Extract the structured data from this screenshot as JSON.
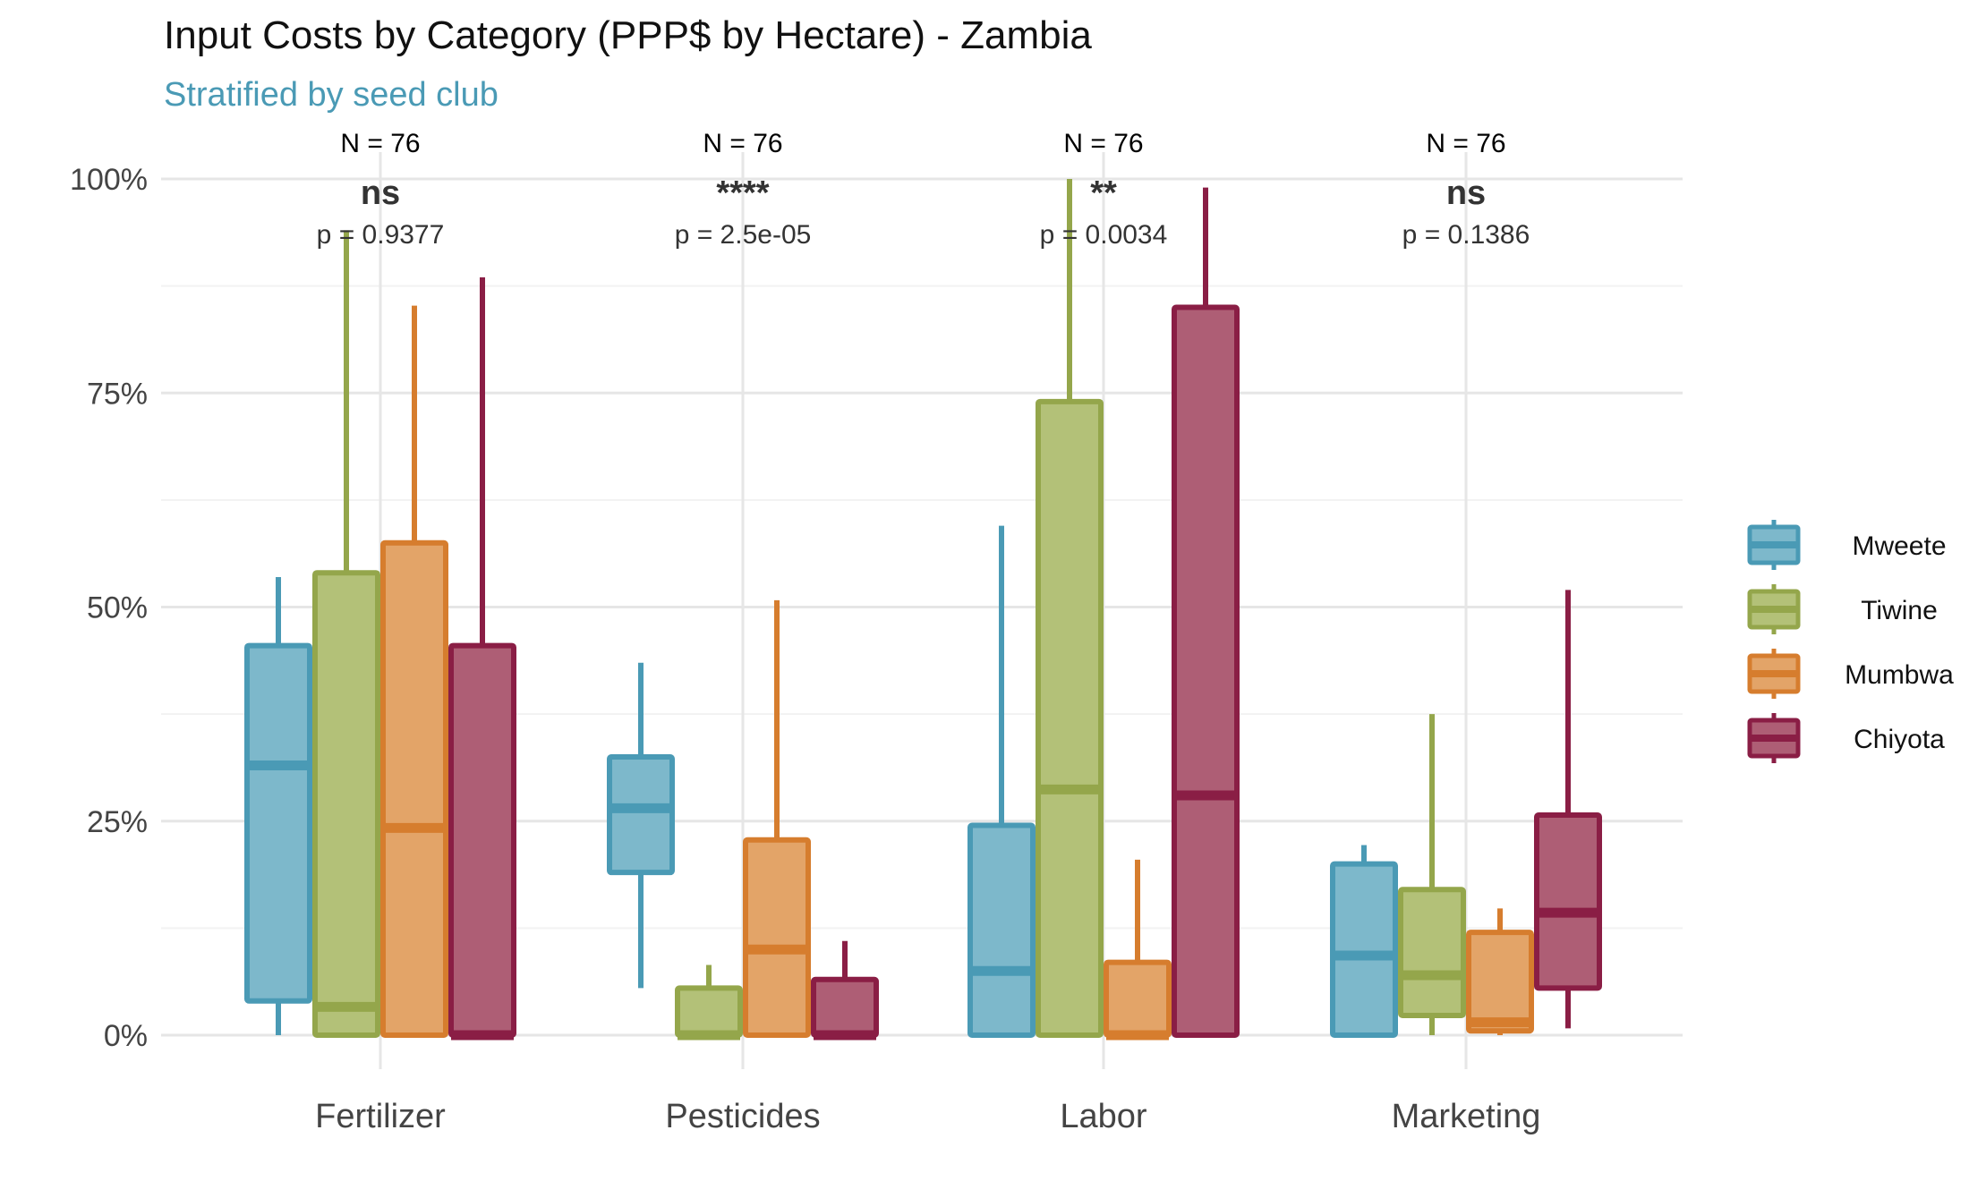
{
  "chart_data": {
    "type": "box",
    "title": "Input Costs by Category (PPP$ by Hectare) - Zambia",
    "subtitle": "Stratified by seed club",
    "subtitle_color": "#4A9AB5",
    "xlabel": "",
    "ylabel": "",
    "ylim": [
      -0.05,
      1.05
    ],
    "y_ticks": [
      {
        "value": 0,
        "label": "0%"
      },
      {
        "value": 0.25,
        "label": "25%"
      },
      {
        "value": 0.5,
        "label": "50%"
      },
      {
        "value": 0.75,
        "label": "75%"
      },
      {
        "value": 1.0,
        "label": "100%"
      }
    ],
    "grid": true,
    "legend_position": "right",
    "categories": [
      "Fertilizer",
      "Pesticides",
      "Labor",
      "Marketing"
    ],
    "series": [
      {
        "name": "Mweete",
        "color": "#4A9AB5",
        "fill": "#7DB8CB",
        "boxes": [
          {
            "min": 0.0,
            "q1": 0.04,
            "median": 0.315,
            "q3": 0.455,
            "max": 0.535
          },
          {
            "min": 0.055,
            "q1": 0.19,
            "median": 0.265,
            "q3": 0.325,
            "max": 0.435
          },
          {
            "min": 0.0,
            "q1": 0.0,
            "median": 0.075,
            "q3": 0.245,
            "max": 0.595
          },
          {
            "min": 0.0,
            "q1": 0.0,
            "median": 0.093,
            "q3": 0.2,
            "max": 0.222
          }
        ]
      },
      {
        "name": "Tiwine",
        "color": "#94A64B",
        "fill": "#B3C178",
        "boxes": [
          {
            "min": 0.0,
            "q1": 0.0,
            "median": 0.033,
            "q3": 0.54,
            "max": 0.94
          },
          {
            "min": 0.0,
            "q1": 0.0,
            "median": 0.0,
            "q3": 0.055,
            "max": 0.082
          },
          {
            "min": 0.0,
            "q1": 0.0,
            "median": 0.287,
            "q3": 0.74,
            "max": 1.0
          },
          {
            "min": 0.0,
            "q1": 0.023,
            "median": 0.07,
            "q3": 0.17,
            "max": 0.375
          }
        ]
      },
      {
        "name": "Mumbwa",
        "color": "#D67D2E",
        "fill": "#E3A468",
        "boxes": [
          {
            "min": 0.0,
            "q1": 0.0,
            "median": 0.242,
            "q3": 0.575,
            "max": 0.852
          },
          {
            "min": 0.0,
            "q1": 0.0,
            "median": 0.1,
            "q3": 0.228,
            "max": 0.508
          },
          {
            "min": 0.0,
            "q1": 0.0,
            "median": 0.0,
            "q3": 0.085,
            "max": 0.205
          },
          {
            "min": 0.0,
            "q1": 0.005,
            "median": 0.015,
            "q3": 0.12,
            "max": 0.148
          }
        ]
      },
      {
        "name": "Chiyota",
        "color": "#8A1E45",
        "fill": "#AE5E75",
        "boxes": [
          {
            "min": 0.0,
            "q1": 0.0,
            "median": 0.0,
            "q3": 0.455,
            "max": 0.885
          },
          {
            "min": 0.0,
            "q1": 0.0,
            "median": 0.0,
            "q3": 0.065,
            "max": 0.11
          },
          {
            "min": 0.0,
            "q1": 0.0,
            "median": 0.28,
            "q3": 0.85,
            "max": 0.99
          },
          {
            "min": 0.008,
            "q1": 0.055,
            "median": 0.143,
            "q3": 0.257,
            "max": 0.52
          }
        ]
      }
    ],
    "annotations": [
      {
        "n": "N = 76",
        "sig": "ns",
        "p": "p = 0.9377"
      },
      {
        "n": "N = 76",
        "sig": "****",
        "p": "p = 2.5e-05"
      },
      {
        "n": "N = 76",
        "sig": "**",
        "p": "p = 0.0034"
      },
      {
        "n": "N = 76",
        "sig": "ns",
        "p": "p = 0.1386"
      }
    ]
  }
}
